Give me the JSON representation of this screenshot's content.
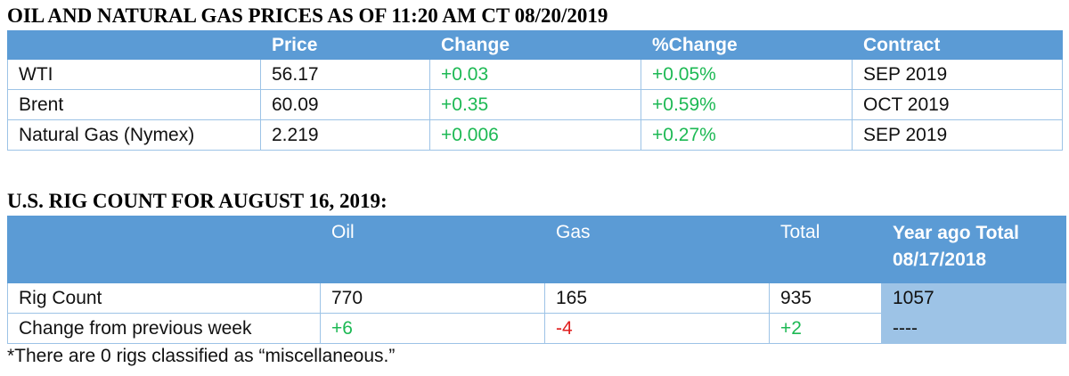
{
  "prices": {
    "title": "OIL AND NATURAL GAS PRICES AS OF 11:20 AM CT 08/20/2019",
    "headers": [
      "",
      "Price",
      "Change",
      "%Change",
      "Contract"
    ],
    "rows": [
      {
        "name": "WTI",
        "price": "56.17",
        "change": "+0.03",
        "pct_change": "+0.05%",
        "contract": "SEP 2019"
      },
      {
        "name": "Brent",
        "price": "60.09",
        "change": "+0.35",
        "pct_change": "+0.59%",
        "contract": "OCT 2019"
      },
      {
        "name": "Natural Gas (Nymex)",
        "price": "2.219",
        "change": "+0.006",
        "pct_change": "+0.27%",
        "contract": "SEP 2019"
      }
    ]
  },
  "rig_count": {
    "title": "U.S. RIG COUNT FOR AUGUST 16, 2019:",
    "headers": {
      "label": "",
      "oil": "Oil",
      "gas": "Gas",
      "total": "Total",
      "year_ago_line1": "Year ago Total",
      "year_ago_line2": "08/17/2018"
    },
    "rows": [
      {
        "label": "Rig Count",
        "oil": "770",
        "gas": "165",
        "total": "935",
        "year_ago": "1057"
      },
      {
        "label": "Change from previous week",
        "oil": "+6",
        "gas": "-4",
        "total": "+2",
        "year_ago": "----"
      }
    ]
  },
  "footnote": "*There are 0 rigs classified as “miscellaneous.”",
  "colors": {
    "header_blue": "#5b9bd5",
    "light_blue": "#9dc3e6",
    "positive_green": "#1db954",
    "negative_red": "#e02020"
  }
}
